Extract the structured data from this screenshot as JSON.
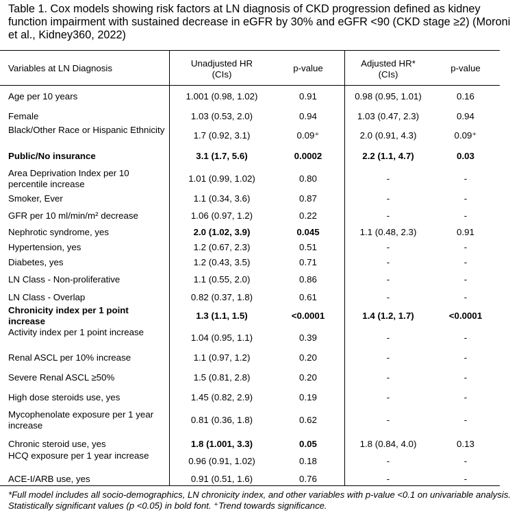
{
  "title": "Table 1. Cox models showing risk factors at LN diagnosis of CKD progression defined as kidney function impairment with sustained decrease in eGFR by 30% and eGFR <90 (CKD stage ≥2) (Moroni et al., Kidney360, 2022)",
  "headers": {
    "variables": "Variables at LN Diagnosis",
    "unadjusted_hr": "Unadjusted HR",
    "unadjusted_cis": "(CIs)",
    "p_value_1": "p-value",
    "adjusted_hr": "Adjusted HR*",
    "adjusted_cis": "(CIs)",
    "p_value_2": "p-value"
  },
  "rows": [
    {
      "label": "Age per 10 years",
      "uhr": "1.001 (0.98, 1.02)",
      "up": "0.91",
      "ahr": "0.98 (0.95, 1.01)",
      "ap": "0.16",
      "bold": false
    },
    {
      "label": "Female",
      "uhr": "1.03 (0.53, 2.0)",
      "up": "0.94",
      "ahr": "1.03 (0.47, 2.3)",
      "ap": "0.94",
      "bold": false
    },
    {
      "label": "Black/Other Race or Hispanic Ethnicity",
      "uhr": "1.7 (0.92, 3.1)",
      "up": "0.09⁺",
      "ahr": "2.0 (0.91, 4.3)",
      "ap": "0.09⁺",
      "bold": false
    },
    {
      "label": "Public/No insurance",
      "uhr": "3.1 (1.7, 5.6)",
      "up": "0.0002",
      "ahr": "2.2 (1.1, 4.7)",
      "ap": "0.03",
      "bold": true
    },
    {
      "label": "Area Deprivation Index per 10 percentile increase",
      "uhr": "1.01 (0.99, 1.02)",
      "up": "0.80",
      "ahr": "-",
      "ap": "-",
      "bold": false
    },
    {
      "label": "Smoker, Ever",
      "uhr": "1.1 (0.34, 3.6)",
      "up": "0.87",
      "ahr": "-",
      "ap": "-",
      "bold": false
    },
    {
      "label": "GFR per 10 ml/min/m² decrease",
      "uhr": "1.06 (0.97, 1.2)",
      "up": "0.22",
      "ahr": "-",
      "ap": "-",
      "bold": false
    },
    {
      "label": "Nephrotic syndrome, yes",
      "uhr": "2.0 (1.02, 3.9)",
      "up": "0.045",
      "ahr": "1.1 (0.48, 2.3)",
      "ap": "0.91",
      "bold": false,
      "bold_unadjusted": true
    },
    {
      "label": "Hypertension, yes",
      "uhr": "1.2 (0.67, 2.3)",
      "up": "0.51",
      "ahr": "-",
      "ap": "-",
      "bold": false
    },
    {
      "label": "Diabetes, yes",
      "uhr": "1.2 (0.43, 3.5)",
      "up": "0.71",
      "ahr": "-",
      "ap": "-",
      "bold": false
    },
    {
      "label": "LN Class - Non-proliferative",
      "uhr": "1.1 (0.55, 2.0)",
      "up": "0.86",
      "ahr": "-",
      "ap": "-",
      "bold": false
    },
    {
      "label": "LN Class - Overlap",
      "uhr": "0.82 (0.37, 1.8)",
      "up": "0.61",
      "ahr": "-",
      "ap": "-",
      "bold": false
    },
    {
      "label": "Chronicity index per 1 point increase",
      "uhr": "1.3 (1.1, 1.5)",
      "up": "<0.0001",
      "ahr": "1.4 (1.2, 1.7)",
      "ap": "<0.0001",
      "bold": true
    },
    {
      "label": "Activity index per 1 point increase",
      "uhr": "1.04 (0.95, 1.1)",
      "up": "0.39",
      "ahr": "-",
      "ap": "-",
      "bold": false
    },
    {
      "label": "Renal ASCL per 10% increase",
      "uhr": "1.1 (0.97, 1.2)",
      "up": "0.20",
      "ahr": "-",
      "ap": "-",
      "bold": false
    },
    {
      "label": "Severe Renal ASCL ≥50%",
      "uhr": "1.5 (0.81, 2.8)",
      "up": "0.20",
      "ahr": "-",
      "ap": "-",
      "bold": false
    },
    {
      "label": "High dose steroids use, yes",
      "uhr": "1.45 (0.82, 2.9)",
      "up": "0.19",
      "ahr": "-",
      "ap": "-",
      "bold": false
    },
    {
      "label": "Mycophenolate exposure per 1 year increase",
      "uhr": "0.81 (0.36, 1.8)",
      "up": "0.62",
      "ahr": "-",
      "ap": "-",
      "bold": false
    },
    {
      "label": "Chronic steroid use, yes",
      "uhr": "1.8 (1.001, 3.3)",
      "up": "0.05",
      "ahr": "1.8 (0.84, 4.0)",
      "ap": "0.13",
      "bold": false,
      "bold_unadjusted": true
    },
    {
      "label": "HCQ exposure per 1 year increase",
      "uhr": "0.96 (0.91, 1.02)",
      "up": "0.18",
      "ahr": "-",
      "ap": "-",
      "bold": false
    },
    {
      "label": "ACE-I/ARB use, yes",
      "uhr": "0.91 (0.51, 1.6)",
      "up": "0.76",
      "ahr": "-",
      "ap": "-",
      "bold": false
    }
  ],
  "footnote": "*Full model includes all socio-demographics, LN chronicity index, and other variables with p-value <0.1 on univariable analysis. Statistically significant values (p <0.05) in bold font. ⁺Trend towards significance."
}
